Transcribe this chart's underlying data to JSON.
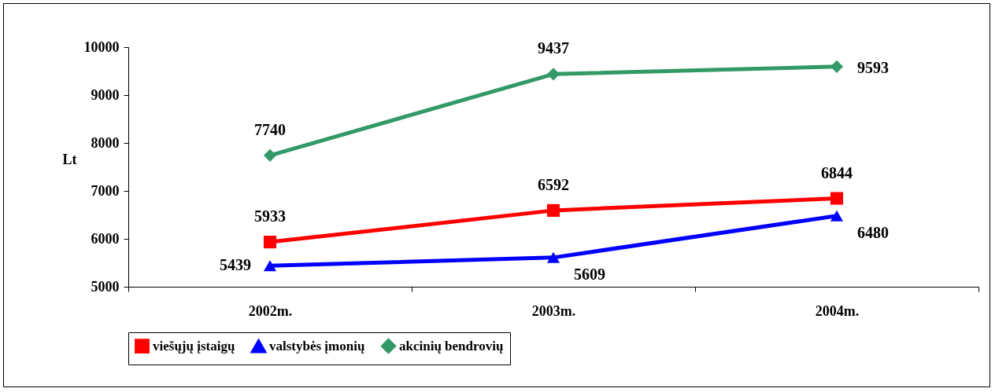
{
  "chart_data": {
    "type": "line",
    "ylabel": "Lt",
    "categories": [
      "2002m.",
      "2003m.",
      "2004m."
    ],
    "series": [
      {
        "name": "viešųjų įstaigų",
        "color": "#ff0000",
        "marker": "square",
        "values": [
          5933,
          6592,
          6844
        ]
      },
      {
        "name": "valstybės įmonių",
        "color": "#0000ff",
        "marker": "triangle",
        "values": [
          5439,
          5609,
          6480
        ]
      },
      {
        "name": "akcinių bendrovių",
        "color": "#339966",
        "marker": "diamond",
        "values": [
          7740,
          9437,
          9593
        ]
      }
    ],
    "ylim": [
      5000,
      10000
    ],
    "yticks": [
      5000,
      6000,
      7000,
      8000,
      9000,
      10000
    ],
    "data_labels": true,
    "legend": "bottom",
    "grid": false
  }
}
